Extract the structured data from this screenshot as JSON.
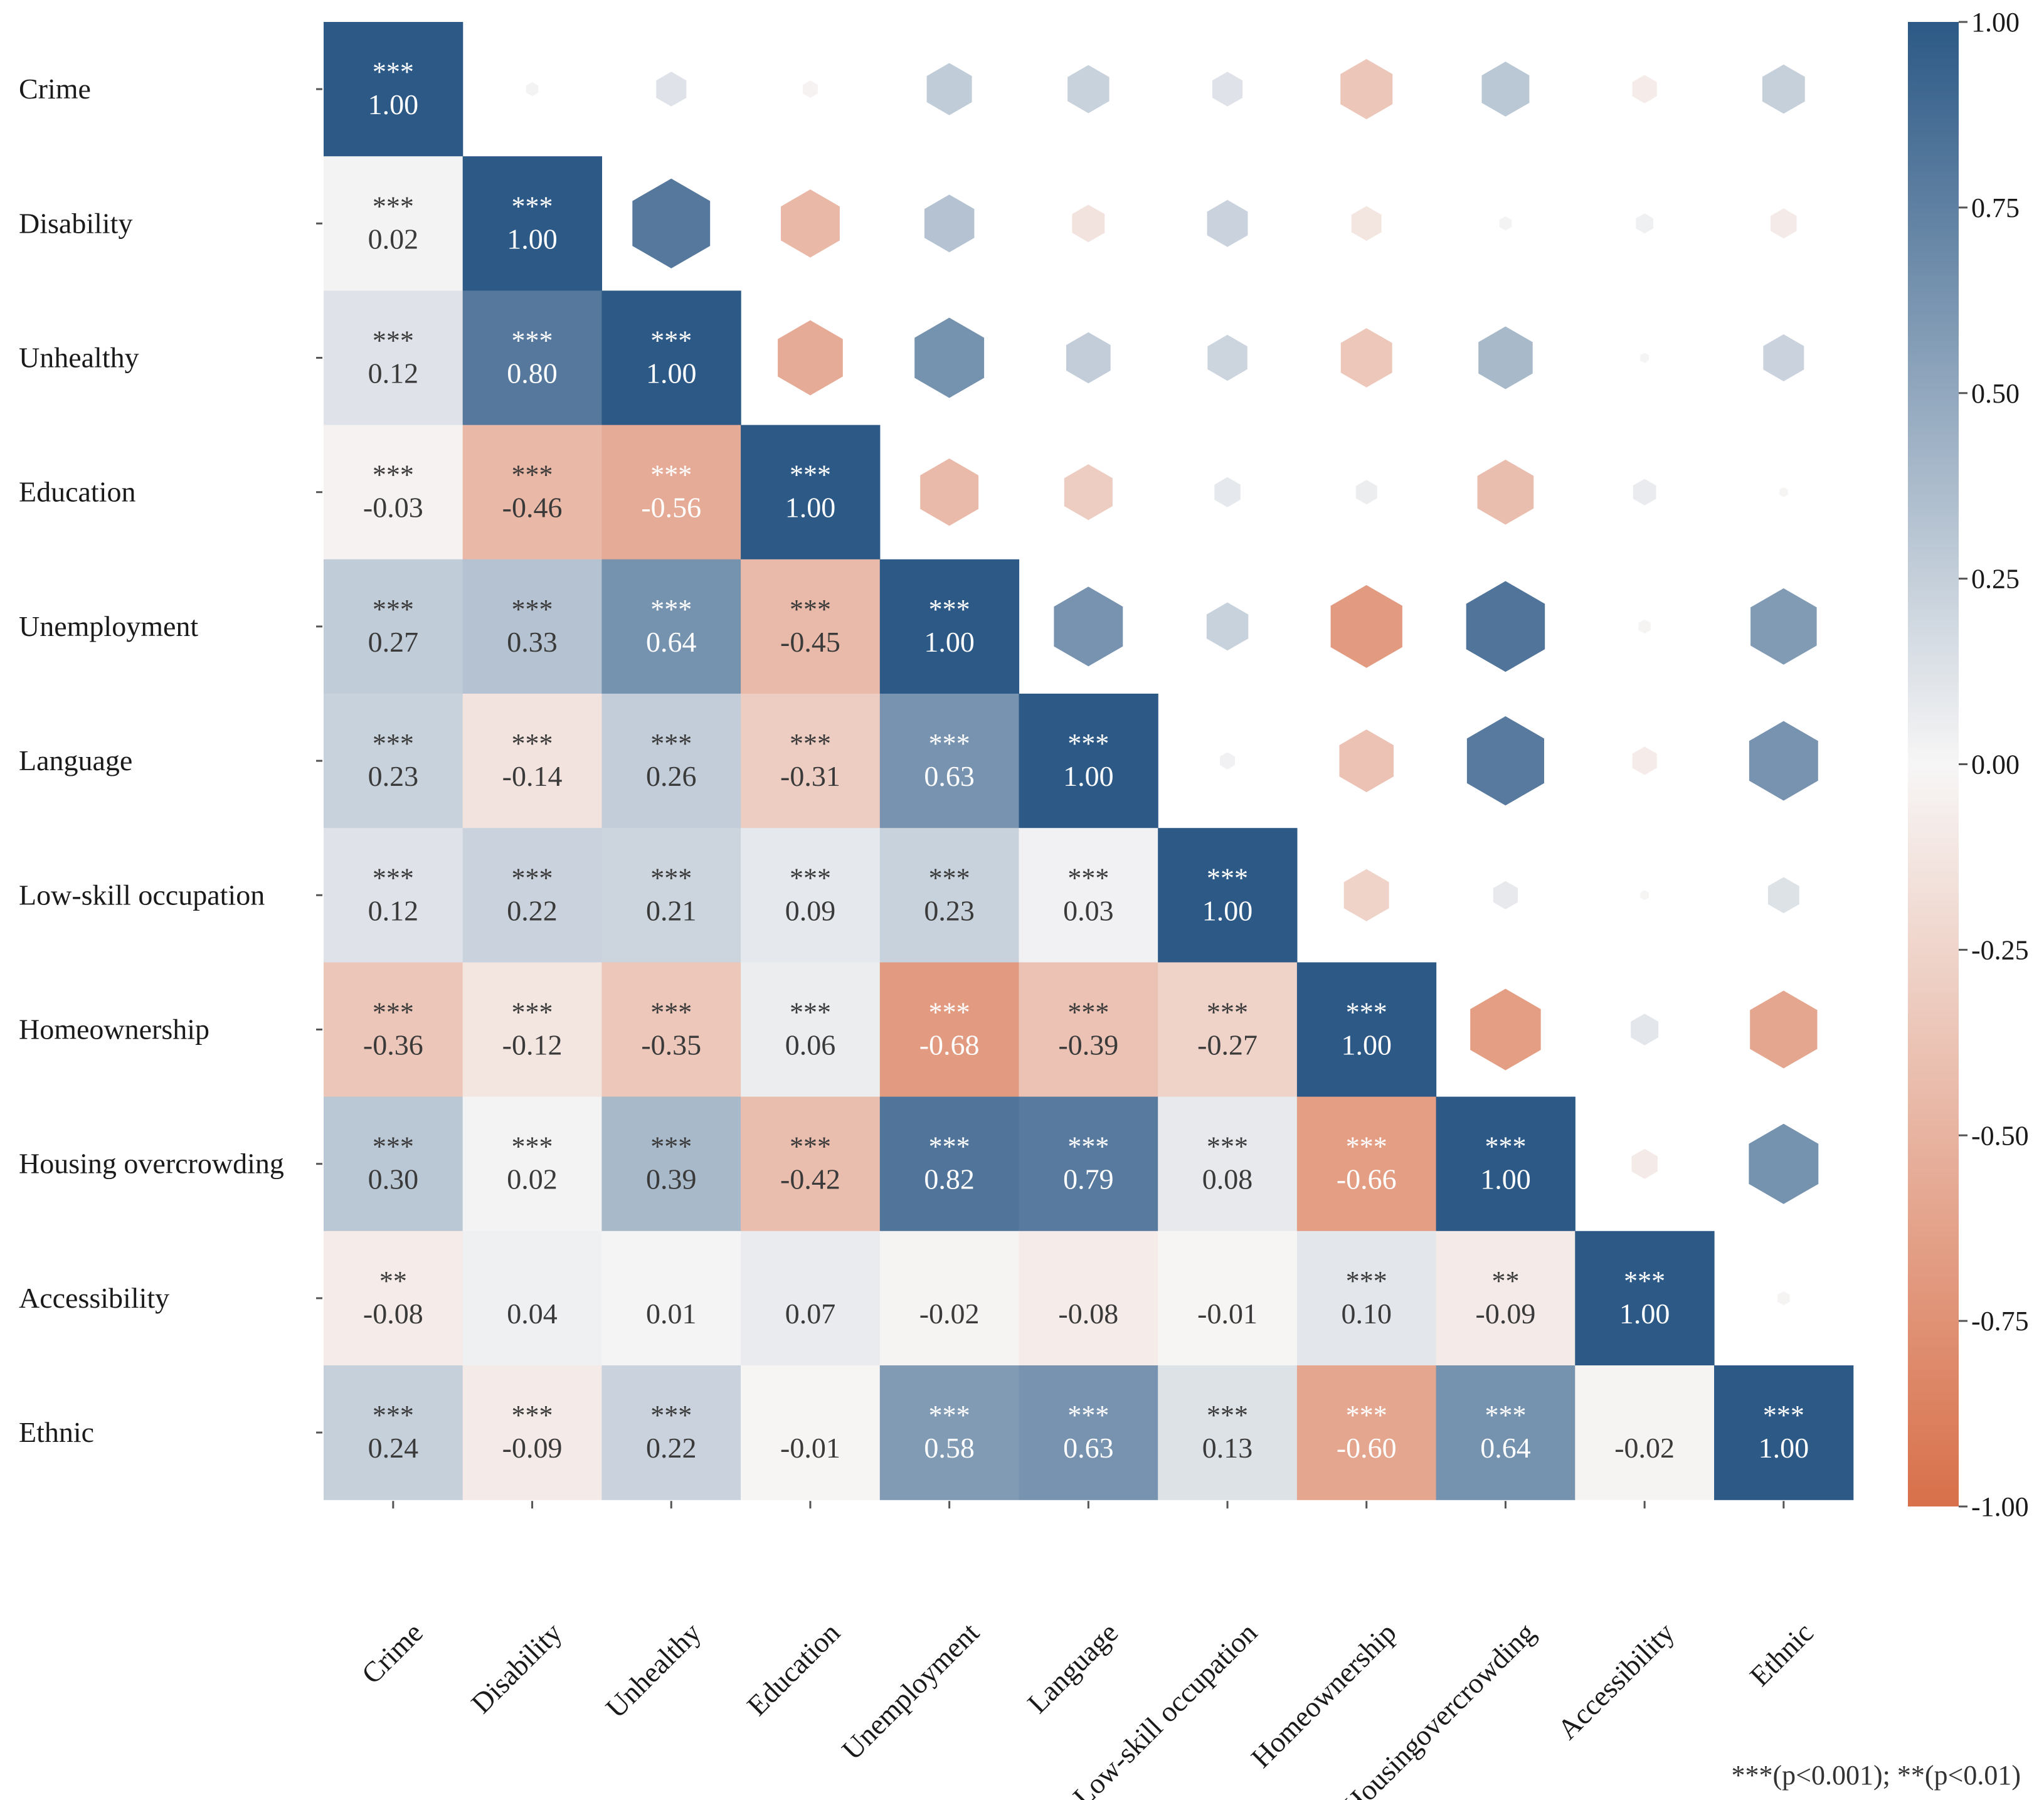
{
  "chart_data": {
    "type": "heatmap",
    "title": "",
    "variables": [
      "Crime",
      "Disability",
      "Unhealthy",
      "Education",
      "Unemployment",
      "Language",
      "Low-skill occupation",
      "Homeownership",
      "Housing overcrowding",
      "Accessibility",
      "Ethnic"
    ],
    "x_tick_labels": [
      "Crime",
      "Disability",
      "Unhealthy",
      "Education",
      "Unemployment",
      "Language",
      "Low-skill occupation",
      "Homeownership",
      "Housingovercrowding",
      "Accessibility",
      "Ethnic"
    ],
    "values": [
      [
        1.0,
        null,
        null,
        null,
        null,
        null,
        null,
        null,
        null,
        null,
        null
      ],
      [
        0.02,
        1.0,
        null,
        null,
        null,
        null,
        null,
        null,
        null,
        null,
        null
      ],
      [
        0.12,
        0.8,
        1.0,
        null,
        null,
        null,
        null,
        null,
        null,
        null,
        null
      ],
      [
        -0.03,
        -0.46,
        -0.56,
        1.0,
        null,
        null,
        null,
        null,
        null,
        null,
        null
      ],
      [
        0.27,
        0.33,
        0.64,
        -0.45,
        1.0,
        null,
        null,
        null,
        null,
        null,
        null
      ],
      [
        0.23,
        -0.14,
        0.26,
        -0.31,
        0.63,
        1.0,
        null,
        null,
        null,
        null,
        null
      ],
      [
        0.12,
        0.22,
        0.21,
        0.09,
        0.23,
        0.03,
        1.0,
        null,
        null,
        null,
        null
      ],
      [
        -0.36,
        -0.12,
        -0.35,
        0.06,
        -0.68,
        -0.39,
        -0.27,
        1.0,
        null,
        null,
        null
      ],
      [
        0.3,
        0.02,
        0.39,
        -0.42,
        0.82,
        0.79,
        0.08,
        -0.66,
        1.0,
        null,
        null
      ],
      [
        -0.08,
        0.04,
        0.01,
        0.07,
        -0.02,
        -0.08,
        -0.01,
        0.1,
        -0.09,
        1.0,
        null
      ],
      [
        0.24,
        -0.09,
        0.22,
        -0.01,
        0.58,
        0.63,
        0.13,
        -0.6,
        0.64,
        -0.02,
        1.0
      ]
    ],
    "value_labels": [
      [
        "1.00"
      ],
      [
        "0.02",
        "1.00"
      ],
      [
        "0.12",
        "0.80",
        "1.00"
      ],
      [
        "-0.03",
        "-0.46",
        "-0.56",
        "1.00"
      ],
      [
        "0.27",
        "0.33",
        "0.64",
        "-0.45",
        "1.00"
      ],
      [
        "0.23",
        "-0.14",
        "0.26",
        "-0.31",
        "0.63",
        "1.00"
      ],
      [
        "0.12",
        "0.22",
        "0.21",
        "0.09",
        "0.23",
        "0.03",
        "1.00"
      ],
      [
        "-0.36",
        "-0.12",
        "-0.35",
        "0.06",
        "-0.68",
        "-0.39",
        "-0.27",
        "1.00"
      ],
      [
        "0.30",
        "0.02",
        "0.39",
        "-0.42",
        "0.82",
        "0.79",
        "0.08",
        "-0.66",
        "1.00"
      ],
      [
        "-0.08",
        "0.04",
        "0.01",
        "0.07",
        "-0.02",
        "-0.08",
        "-0.01",
        "0.10",
        "-0.09",
        "1.00"
      ],
      [
        "0.24",
        "-0.09",
        "0.22",
        "-0.01",
        "0.58",
        "0.63",
        "0.13",
        "-0.60",
        "0.64",
        "-0.02",
        "1.00"
      ]
    ],
    "significance": [
      [
        "***"
      ],
      [
        "***",
        "***"
      ],
      [
        "***",
        "***",
        "***"
      ],
      [
        "***",
        "***",
        "***",
        "***"
      ],
      [
        "***",
        "***",
        "***",
        "***",
        "***"
      ],
      [
        "***",
        "***",
        "***",
        "***",
        "***",
        "***"
      ],
      [
        "***",
        "***",
        "***",
        "***",
        "***",
        "***",
        "***"
      ],
      [
        "***",
        "***",
        "***",
        "***",
        "***",
        "***",
        "***",
        "***"
      ],
      [
        "***",
        "***",
        "***",
        "***",
        "***",
        "***",
        "***",
        "***",
        "***"
      ],
      [
        "**",
        "",
        "",
        "",
        "",
        "",
        "",
        "***",
        "**",
        "***"
      ],
      [
        "***",
        "***",
        "***",
        "",
        "***",
        "***",
        "***",
        "***",
        "***",
        "",
        "***"
      ]
    ],
    "upper_triangle_marker": "hexagon",
    "upper_triangle_encoding": "marker size and color = mirrored correlation value",
    "colorbar": {
      "range": [
        -1.0,
        1.0
      ],
      "tick_values": [
        1.0,
        0.75,
        0.5,
        0.25,
        0.0,
        -0.25,
        -0.5,
        -0.75,
        -1.0
      ],
      "tick_labels": [
        "1.00",
        "0.75",
        "0.50",
        "0.25",
        "0.00",
        "-0.25",
        "-0.50",
        "-0.75",
        "-1.00"
      ],
      "placement": "right"
    },
    "footnote": "***(p<0.001); **(p<0.01)"
  },
  "colors": {
    "positive": "#2c5986",
    "neutral": "#f7f6f6",
    "negative": "#d8704a",
    "sig_text_light": "#ffffff",
    "sig_text_dark": "#3a3a3a",
    "axis_text": "#1a1a1a",
    "tick_mark": "#555555"
  }
}
